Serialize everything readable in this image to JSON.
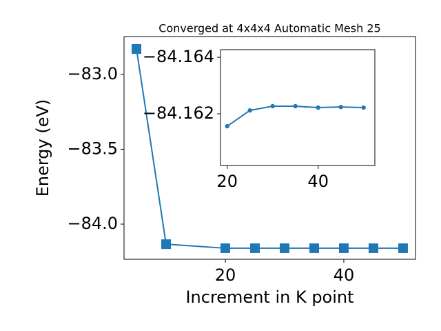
{
  "chart_data": [
    {
      "type": "line",
      "title": "Converged at 4x4x4 Automatic Mesh 25",
      "x_label": "Increment in K point",
      "y_label": "Energy (eV)",
      "marker": "square",
      "color": "#1f77b4",
      "x": [
        5,
        10,
        20,
        25,
        30,
        35,
        40,
        45,
        50
      ],
      "series": [
        {
          "name": "Energy",
          "color": "#1f77b4",
          "values": [
            -82.83,
            -84.134,
            -84.161,
            -84.161,
            -84.161,
            -84.161,
            -84.161,
            -84.161,
            -84.161
          ]
        }
      ],
      "xlim": [
        2.9,
        52.1
      ],
      "ylim": [
        -84.235,
        -82.747
      ],
      "xticks": [
        20,
        40
      ],
      "yticks": [
        {
          "value": -83.0,
          "label": "−83.0"
        },
        {
          "value": -83.5,
          "label": "−83.5"
        },
        {
          "value": -84.0,
          "label": "−84.0"
        }
      ]
    },
    {
      "type": "line",
      "marker": "circle",
      "x": [
        20,
        25,
        30,
        35,
        40,
        45,
        50
      ],
      "series": [
        {
          "name": "Energy",
          "color": "#1f77b4",
          "values": [
            -84.16156,
            -84.16212,
            -84.16227,
            -84.16227,
            -84.16222,
            -84.16224,
            -84.16222
          ]
        }
      ],
      "xlim": [
        18.53,
        52.47
      ],
      "ylim": [
        -84.16017,
        -84.16427
      ],
      "xticks": [
        20,
        40
      ],
      "yticks": [
        {
          "value": -84.164,
          "label": "−84.164"
        },
        {
          "value": -84.162,
          "label": "−84.162"
        }
      ]
    }
  ]
}
